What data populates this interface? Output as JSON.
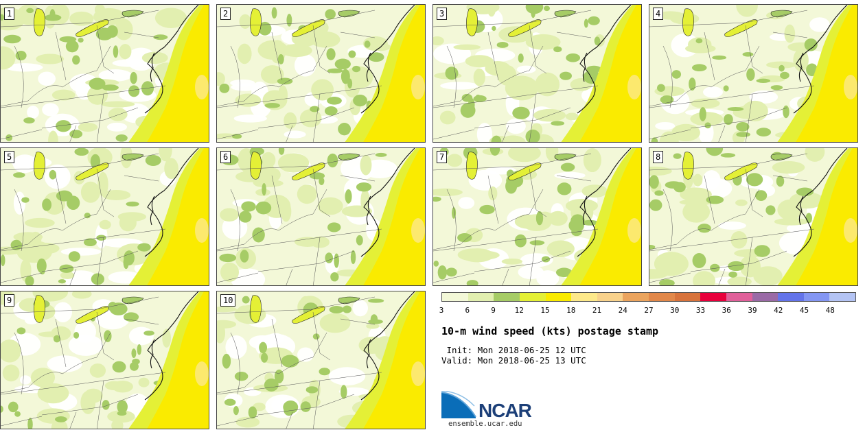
{
  "title": "10-m wind speed (kts) postage stamp",
  "init_line": " Init: Mon 2018-06-25 12 UTC",
  "valid_line": "Valid: Mon 2018-06-25 13 UTC",
  "logo": {
    "name": "NCAR",
    "url": "ensemble.ucar.edu"
  },
  "members": [
    "1",
    "2",
    "3",
    "4",
    "5",
    "6",
    "7",
    "8",
    "9",
    "10"
  ],
  "colorbar": {
    "units": "kts",
    "ticks": [
      "3",
      "6",
      "9",
      "12",
      "15",
      "18",
      "21",
      "24",
      "27",
      "30",
      "33",
      "36",
      "39",
      "42",
      "45",
      "48"
    ],
    "colors": [
      "#f3f8d8",
      "#e2efb0",
      "#a6cc66",
      "#e4f036",
      "#faeb00",
      "#fde98a",
      "#f8d28c",
      "#eba45e",
      "#e2884a",
      "#d8733c",
      "#e8003c",
      "#e0609a",
      "#9a6aa6",
      "#6474ea",
      "#8496f2",
      "#b4c4f4"
    ]
  }
}
